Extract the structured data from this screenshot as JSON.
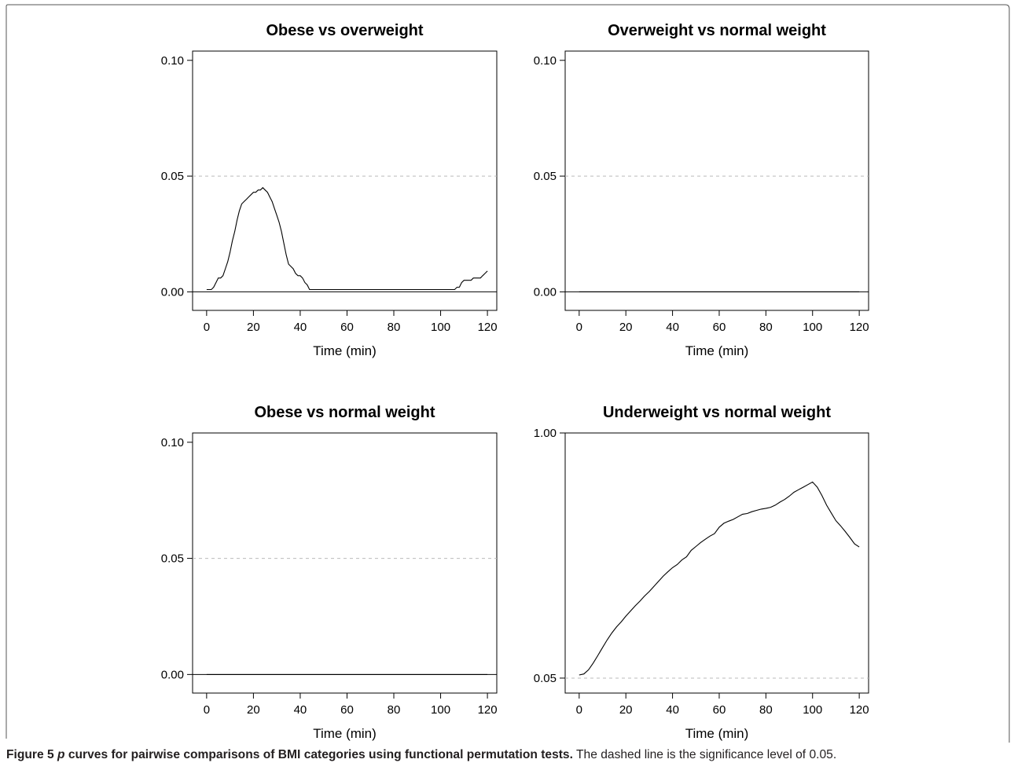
{
  "figure": {
    "label": "Figure 5",
    "title_symbol": "p",
    "title_rest": " curves for pairwise comparisons of BMI categories using functional permutation tests.",
    "description": "The dashed line is the significance level of 0.05."
  },
  "chart_data": [
    {
      "type": "line",
      "title": "Obese vs overweight",
      "xlabel": "Time (min)",
      "ylabel": "",
      "xlim": [
        -6,
        124
      ],
      "ylim": [
        -0.008,
        0.104
      ],
      "xticks": [
        0,
        20,
        40,
        60,
        80,
        100,
        120
      ],
      "yticks": [
        0,
        0.05,
        0.1
      ],
      "ytick_labels": [
        "0.00",
        "0.05",
        "0.10"
      ],
      "reference_line": 0.05,
      "baseline": 0,
      "series": [
        {
          "x": [
            0,
            2,
            3,
            4,
            5,
            6,
            7,
            8,
            9,
            10,
            11,
            12,
            13,
            14,
            15,
            16,
            17,
            18,
            19,
            20,
            21,
            22,
            23,
            24,
            25,
            26,
            27,
            28,
            29,
            30,
            31,
            32,
            33,
            34,
            35,
            36,
            37,
            38,
            39,
            40,
            41,
            42,
            43,
            44,
            46,
            60,
            80,
            100,
            106,
            107,
            108,
            109,
            110,
            111,
            112,
            113,
            114,
            115,
            116,
            117,
            118,
            119,
            120
          ],
          "y": [
            0.001,
            0.001,
            0.002,
            0.004,
            0.006,
            0.006,
            0.007,
            0.01,
            0.013,
            0.017,
            0.022,
            0.026,
            0.031,
            0.035,
            0.038,
            0.039,
            0.04,
            0.041,
            0.042,
            0.043,
            0.043,
            0.044,
            0.044,
            0.045,
            0.044,
            0.043,
            0.041,
            0.039,
            0.036,
            0.033,
            0.03,
            0.026,
            0.021,
            0.016,
            0.012,
            0.011,
            0.01,
            0.008,
            0.007,
            0.007,
            0.006,
            0.004,
            0.003,
            0.001,
            0.001,
            0.001,
            0.001,
            0.001,
            0.001,
            0.002,
            0.002,
            0.004,
            0.005,
            0.005,
            0.005,
            0.005,
            0.006,
            0.006,
            0.006,
            0.006,
            0.007,
            0.008,
            0.009
          ]
        }
      ]
    },
    {
      "type": "line",
      "title": "Overweight vs normal weight",
      "xlabel": "Time (min)",
      "ylabel": "",
      "xlim": [
        -6,
        124
      ],
      "ylim": [
        -0.008,
        0.104
      ],
      "xticks": [
        0,
        20,
        40,
        60,
        80,
        100,
        120
      ],
      "yticks": [
        0,
        0.05,
        0.1
      ],
      "ytick_labels": [
        "0.00",
        "0.05",
        "0.10"
      ],
      "reference_line": 0.05,
      "baseline": 0,
      "series": [
        {
          "x": [
            0,
            120
          ],
          "y": [
            0,
            0
          ]
        }
      ]
    },
    {
      "type": "line",
      "title": "Obese vs normal weight",
      "xlabel": "Time (min)",
      "ylabel": "",
      "xlim": [
        -6,
        124
      ],
      "ylim": [
        -0.008,
        0.104
      ],
      "xticks": [
        0,
        20,
        40,
        60,
        80,
        100,
        120
      ],
      "yticks": [
        0,
        0.05,
        0.1
      ],
      "ytick_labels": [
        "0.00",
        "0.05",
        "0.10"
      ],
      "reference_line": 0.05,
      "baseline": 0,
      "series": [
        {
          "x": [
            0,
            120
          ],
          "y": [
            0,
            0
          ]
        }
      ]
    },
    {
      "type": "line",
      "title": "Underweight vs normal weight",
      "xlabel": "Time (min)",
      "ylabel": "",
      "xlim": [
        -6,
        124
      ],
      "ylim": [
        -0.008,
        1.0
      ],
      "xticks": [
        0,
        20,
        40,
        60,
        80,
        100,
        120
      ],
      "yticks": [
        0.05,
        1.0
      ],
      "ytick_labels": [
        "0.05",
        "1.00"
      ],
      "reference_line": 0.05,
      "baseline": -0.008,
      "series": [
        {
          "x": [
            0,
            2,
            4,
            6,
            8,
            10,
            12,
            14,
            16,
            18,
            20,
            22,
            24,
            26,
            28,
            30,
            32,
            34,
            36,
            38,
            40,
            42,
            44,
            46,
            48,
            50,
            52,
            54,
            56,
            58,
            60,
            62,
            64,
            66,
            68,
            70,
            72,
            74,
            76,
            78,
            80,
            82,
            84,
            86,
            88,
            90,
            92,
            94,
            96,
            98,
            100,
            102,
            104,
            106,
            108,
            110,
            112,
            114,
            116,
            118,
            120
          ],
          "y": [
            0.062,
            0.066,
            0.082,
            0.108,
            0.138,
            0.168,
            0.198,
            0.225,
            0.248,
            0.268,
            0.29,
            0.31,
            0.33,
            0.348,
            0.368,
            0.385,
            0.405,
            0.425,
            0.445,
            0.462,
            0.478,
            0.49,
            0.508,
            0.52,
            0.545,
            0.56,
            0.575,
            0.588,
            0.6,
            0.61,
            0.635,
            0.65,
            0.658,
            0.665,
            0.675,
            0.685,
            0.688,
            0.695,
            0.7,
            0.705,
            0.708,
            0.712,
            0.72,
            0.732,
            0.742,
            0.755,
            0.77,
            0.78,
            0.79,
            0.8,
            0.81,
            0.79,
            0.758,
            0.72,
            0.69,
            0.66,
            0.64,
            0.618,
            0.595,
            0.57,
            0.558
          ]
        }
      ]
    }
  ]
}
